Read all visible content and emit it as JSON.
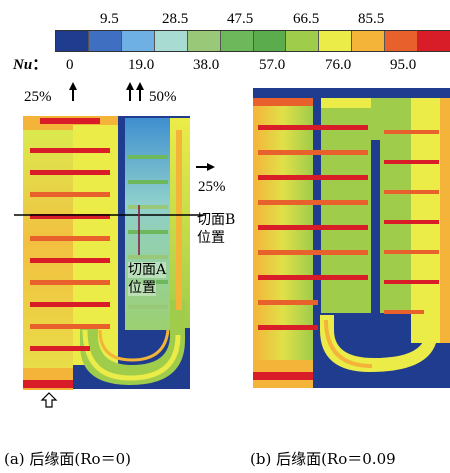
{
  "legend": {
    "variable_label": "Nu",
    "variable_colon": "：",
    "colors": [
      "#1f3c8f",
      "#3f6fc0",
      "#6fb0e4",
      "#a8dcd2",
      "#98c878",
      "#6cb85a",
      "#5aac4c",
      "#9fcc4a",
      "#ecec48",
      "#f4b43a",
      "#e8602c",
      "#d81c28"
    ],
    "upper_ticks": [
      "9.5",
      "28.5",
      "47.5",
      "66.5",
      "85.5"
    ],
    "lower_ticks": [
      "0",
      "19.0",
      "38.0",
      "57.0",
      "76.0",
      "95.0"
    ]
  },
  "annotations": {
    "inlet_left_pct": "25%",
    "inlet_right_pct": "50%",
    "outlet_pct": "25%",
    "section_b_line1": "切面B",
    "section_b_line2": "位置",
    "section_a_line1": "切面A",
    "section_a_line2": "位置"
  },
  "captions": {
    "a": "(a) 后缘面(Ro＝0)",
    "b": "(b) 后缘面(Ro＝0.09"
  }
}
